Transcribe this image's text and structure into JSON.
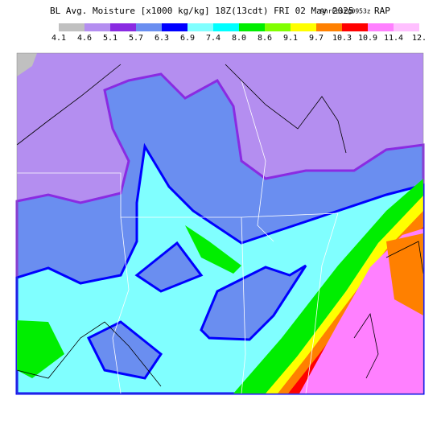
{
  "header": {
    "title": "BL Avg. Moisture [x1000 kg/kg] 18Z(13cdt) FRI 02 May 2025",
    "forecast": "9hrFcst@0953z",
    "model": "RAP"
  },
  "legend": {
    "labels": [
      "4.1",
      "4.6",
      "5.1",
      "5.7",
      "6.3",
      "6.9",
      "7.4",
      "8.0",
      "8.6",
      "9.1",
      "9.7",
      "10.3",
      "10.9",
      "11.4",
      "12."
    ],
    "colors": [
      "#c0c0c0",
      "#b48ef0",
      "#8a2be2",
      "#6a8ef0",
      "#0000ff",
      "#80ffff",
      "#00ffff",
      "#00ee00",
      "#80ff00",
      "#ffff00",
      "#ff8000",
      "#ff0000",
      "#ff80ff",
      "#ffc0ff",
      "#ffffff"
    ]
  }
}
